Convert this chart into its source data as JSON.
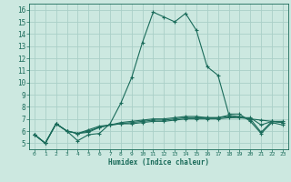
{
  "xlabel": "Humidex (Indice chaleur)",
  "bg_color": "#cce8e0",
  "grid_color": "#aacfc8",
  "line_color": "#1a6b5a",
  "xlim": [
    -0.5,
    23.5
  ],
  "ylim": [
    4.5,
    16.5
  ],
  "xticks": [
    0,
    1,
    2,
    3,
    4,
    5,
    6,
    7,
    8,
    9,
    10,
    11,
    12,
    13,
    14,
    15,
    16,
    17,
    18,
    19,
    20,
    21,
    22,
    23
  ],
  "yticks": [
    5,
    6,
    7,
    8,
    9,
    10,
    11,
    12,
    13,
    14,
    15,
    16
  ],
  "series": [
    [
      5.7,
      5.0,
      6.6,
      6.0,
      5.2,
      5.7,
      5.8,
      6.6,
      8.3,
      10.4,
      13.3,
      15.8,
      15.4,
      15.0,
      15.7,
      14.3,
      11.3,
      10.6,
      7.4,
      7.4,
      6.8,
      5.8,
      6.7,
      6.5
    ],
    [
      5.7,
      5.0,
      6.6,
      6.0,
      5.8,
      5.9,
      6.3,
      6.5,
      6.6,
      6.6,
      6.7,
      6.8,
      6.8,
      6.9,
      7.0,
      7.0,
      7.0,
      7.0,
      7.1,
      7.1,
      7.0,
      6.9,
      6.8,
      6.8
    ],
    [
      5.7,
      5.0,
      6.6,
      6.0,
      5.8,
      6.0,
      6.3,
      6.5,
      6.6,
      6.7,
      6.8,
      6.9,
      6.9,
      7.0,
      7.1,
      7.1,
      7.1,
      7.1,
      7.2,
      7.1,
      7.1,
      6.5,
      6.8,
      6.7
    ],
    [
      5.7,
      5.0,
      6.6,
      6.0,
      5.8,
      6.1,
      6.4,
      6.5,
      6.7,
      6.8,
      6.9,
      7.0,
      7.0,
      7.1,
      7.2,
      7.2,
      7.1,
      7.1,
      7.3,
      7.2,
      7.0,
      5.9,
      6.8,
      6.7
    ]
  ]
}
